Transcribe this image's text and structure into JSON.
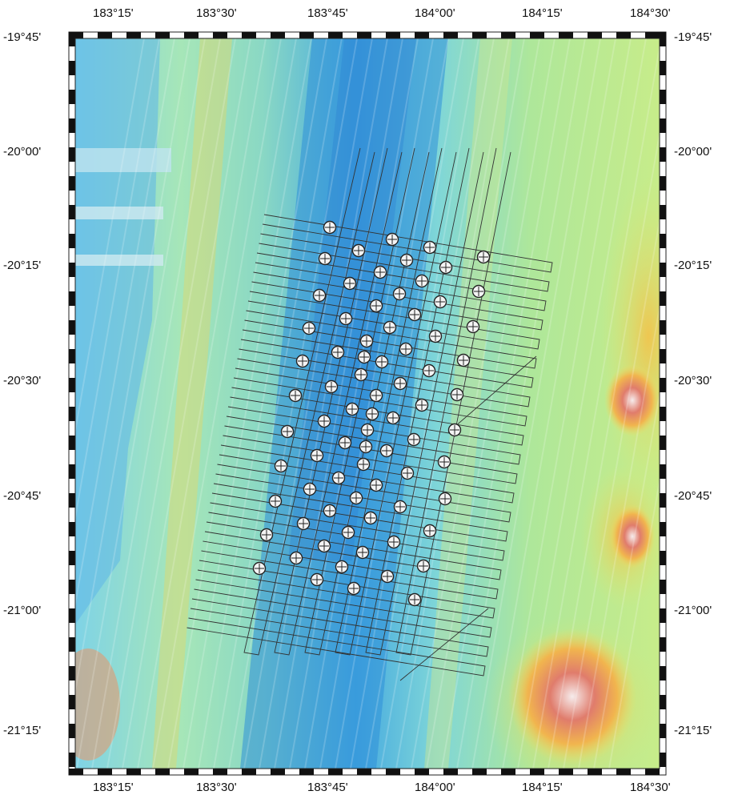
{
  "map": {
    "lon_ticks": [
      "183°15'",
      "183°30'",
      "183°45'",
      "184°00'",
      "184°15'",
      "184°30'"
    ],
    "lat_ticks": [
      "-19°45'",
      "-20°00'",
      "-20°15'",
      "-20°30'",
      "-20°45'",
      "-21°00'",
      "-21°15'"
    ],
    "lon_range": [
      183.0,
      184.5
    ],
    "lat_range": [
      -21.333,
      -19.75
    ],
    "symbol": "circle-with-cross",
    "colors": {
      "deep": "#3a9ad9",
      "mid": "#8fd8d0",
      "shallow": "#b7e88a",
      "high": "#f0c84a",
      "peak": "#d8453a",
      "summit": "#f4eaea"
    }
  }
}
